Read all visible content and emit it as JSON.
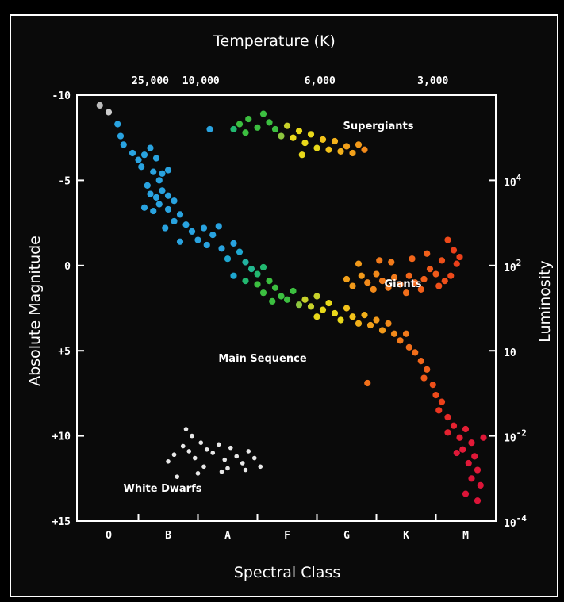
{
  "chart_data": {
    "type": "scatter",
    "title": "",
    "x_top_label": "Temperature (K)",
    "x_bottom_label": "Spectral Class",
    "y_left_label": "Absolute Magnitude",
    "y_right_label": "Luminosity",
    "ylim": [
      -10,
      15
    ],
    "y_left_ticks": [
      {
        "value": -10,
        "label": "-10"
      },
      {
        "value": -5,
        "label": "-5"
      },
      {
        "value": 0,
        "label": "0"
      },
      {
        "value": 5,
        "label": "+5"
      },
      {
        "value": 10,
        "label": "+10"
      },
      {
        "value": 15,
        "label": "+15"
      }
    ],
    "y_right_ticks": [
      {
        "value": -5,
        "base": "10",
        "exp": "4"
      },
      {
        "value": 0,
        "base": "10",
        "exp": "2"
      },
      {
        "value": 5,
        "base": "10",
        "exp": ""
      },
      {
        "value": 10,
        "base": "10",
        "exp": "-2"
      },
      {
        "value": 15,
        "base": "10",
        "exp": "-4"
      }
    ],
    "spectral_classes": [
      {
        "label": "O",
        "x": 0
      },
      {
        "label": "B",
        "x": 1
      },
      {
        "label": "A",
        "x": 2
      },
      {
        "label": "F",
        "x": 3
      },
      {
        "label": "G",
        "x": 4
      },
      {
        "label": "K",
        "x": 5
      },
      {
        "label": "M",
        "x": 6
      }
    ],
    "xlim": [
      -0.3,
      6.5
    ],
    "temperature_ticks": [
      {
        "label": "25,000",
        "x": 0.7
      },
      {
        "label": "10,000",
        "x": 1.55
      },
      {
        "label": "6,000",
        "x": 3.55
      },
      {
        "label": "3,000",
        "x": 5.45
      }
    ],
    "regions": [
      {
        "label": "Supergiants",
        "x": 4.0,
        "y": -8.1
      },
      {
        "label": "Giants",
        "x": 4.6,
        "y": 1.2
      },
      {
        "label": "Main Sequence",
        "x": 2.5,
        "y": 5.5
      },
      {
        "label": "White Dwarfs",
        "x": 0.55,
        "y": 13.0
      }
    ],
    "series": [
      {
        "group": "main-sequence",
        "points": [
          [
            -0.15,
            -9.4,
            "#bbbbbb"
          ],
          [
            0.0,
            -9.0,
            "#cccccc"
          ],
          [
            0.15,
            -8.3,
            "#29a3e0"
          ],
          [
            0.2,
            -7.6,
            "#29a3e0"
          ],
          [
            0.25,
            -7.1,
            "#29a3e0"
          ],
          [
            0.4,
            -6.6,
            "#29a3e0"
          ],
          [
            0.5,
            -6.2,
            "#29a3e0"
          ],
          [
            0.55,
            -5.8,
            "#29a3e0"
          ],
          [
            0.6,
            -6.5,
            "#29a3e0"
          ],
          [
            0.7,
            -6.9,
            "#29a3e0"
          ],
          [
            0.8,
            -6.3,
            "#29a3e0"
          ],
          [
            0.75,
            -5.5,
            "#29a3e0"
          ],
          [
            0.85,
            -5.0,
            "#29a3e0"
          ],
          [
            0.9,
            -5.4,
            "#29a3e0"
          ],
          [
            1.0,
            -5.6,
            "#29a3e0"
          ],
          [
            0.65,
            -4.7,
            "#29a3e0"
          ],
          [
            0.7,
            -4.2,
            "#29a3e0"
          ],
          [
            0.8,
            -4.0,
            "#29a3e0"
          ],
          [
            0.9,
            -4.4,
            "#29a3e0"
          ],
          [
            1.0,
            -4.1,
            "#29a3e0"
          ],
          [
            1.1,
            -3.8,
            "#29a3e0"
          ],
          [
            0.6,
            -3.4,
            "#29a3e0"
          ],
          [
            0.75,
            -3.2,
            "#29a3e0"
          ],
          [
            0.85,
            -3.6,
            "#29a3e0"
          ],
          [
            1.0,
            -3.3,
            "#29a3e0"
          ],
          [
            1.2,
            -3.0,
            "#29a3e0"
          ],
          [
            1.1,
            -2.6,
            "#29a3e0"
          ],
          [
            1.3,
            -2.4,
            "#29a3e0"
          ],
          [
            0.95,
            -2.2,
            "#29a3e0"
          ],
          [
            1.4,
            -2.0,
            "#29a3e0"
          ],
          [
            1.6,
            -2.2,
            "#29a3e0"
          ],
          [
            1.75,
            -1.8,
            "#29a3e0"
          ],
          [
            1.85,
            -2.3,
            "#29a3e0"
          ],
          [
            1.5,
            -1.5,
            "#29a3e0"
          ],
          [
            1.65,
            -1.2,
            "#29a3e0"
          ],
          [
            1.9,
            -1.0,
            "#29a3e0"
          ],
          [
            1.2,
            -1.4,
            "#29a3e0"
          ],
          [
            2.1,
            -1.3,
            "#29a3e0"
          ],
          [
            2.2,
            -0.8,
            "#1ea7d0"
          ],
          [
            2.0,
            -0.4,
            "#1ea7d0"
          ],
          [
            2.3,
            -0.2,
            "#22b3a0"
          ],
          [
            2.4,
            0.2,
            "#22b890"
          ],
          [
            2.5,
            0.5,
            "#22b870"
          ],
          [
            2.6,
            0.1,
            "#22b870"
          ],
          [
            2.1,
            0.6,
            "#1ea7d0"
          ],
          [
            2.3,
            0.9,
            "#22b870"
          ],
          [
            2.5,
            1.1,
            "#3cbf40"
          ],
          [
            2.7,
            0.9,
            "#3cbf40"
          ],
          [
            2.8,
            1.3,
            "#3cbf40"
          ],
          [
            2.6,
            1.6,
            "#3cbf40"
          ],
          [
            2.9,
            1.8,
            "#3cbf40"
          ],
          [
            3.0,
            2.0,
            "#3cbf40"
          ],
          [
            2.75,
            2.1,
            "#3cbf40"
          ],
          [
            3.1,
            1.5,
            "#3cbf40"
          ],
          [
            3.2,
            2.3,
            "#8dc63f"
          ],
          [
            3.3,
            2.0,
            "#c8d22a"
          ],
          [
            3.4,
            2.4,
            "#c8d22a"
          ],
          [
            3.5,
            1.8,
            "#c8d22a"
          ],
          [
            3.6,
            2.6,
            "#e8d81a"
          ],
          [
            3.5,
            3.0,
            "#e8d81a"
          ],
          [
            3.7,
            2.2,
            "#e8d81a"
          ],
          [
            3.8,
            2.8,
            "#e8d81a"
          ],
          [
            3.9,
            3.2,
            "#e8d81a"
          ],
          [
            4.0,
            2.5,
            "#f2c21a"
          ],
          [
            4.1,
            3.0,
            "#f2c21a"
          ],
          [
            4.2,
            3.4,
            "#f2b01a"
          ],
          [
            4.3,
            2.9,
            "#f2b01a"
          ],
          [
            4.4,
            3.5,
            "#f2a01a"
          ],
          [
            4.5,
            3.2,
            "#f29a1a"
          ],
          [
            4.6,
            3.8,
            "#f29a1a"
          ],
          [
            4.7,
            3.4,
            "#f28a1a"
          ],
          [
            4.8,
            4.0,
            "#f28a1a"
          ],
          [
            4.9,
            4.4,
            "#f27a1a"
          ],
          [
            5.0,
            4.0,
            "#f27a1a"
          ],
          [
            5.05,
            4.8,
            "#f26e1a"
          ],
          [
            5.15,
            5.1,
            "#f26e1a"
          ],
          [
            5.25,
            5.6,
            "#f2661a"
          ],
          [
            4.35,
            6.9,
            "#f2701a"
          ],
          [
            5.35,
            6.1,
            "#f2601a"
          ],
          [
            5.3,
            6.6,
            "#f05a1a"
          ],
          [
            5.45,
            7.0,
            "#ee501a"
          ],
          [
            5.5,
            7.6,
            "#ee4a1a"
          ],
          [
            5.6,
            8.0,
            "#ec401a"
          ],
          [
            5.55,
            8.5,
            "#ec3520"
          ],
          [
            5.7,
            8.9,
            "#e82a28"
          ],
          [
            5.8,
            9.4,
            "#e42230"
          ],
          [
            5.7,
            9.8,
            "#e42230"
          ],
          [
            5.9,
            10.1,
            "#e41e34"
          ],
          [
            6.0,
            9.6,
            "#e41e34"
          ],
          [
            6.1,
            10.4,
            "#e41a38"
          ],
          [
            5.95,
            10.8,
            "#e41a38"
          ],
          [
            6.15,
            11.2,
            "#e01838"
          ],
          [
            6.05,
            11.6,
            "#e01838"
          ],
          [
            6.2,
            12.0,
            "#e01838"
          ],
          [
            6.1,
            12.5,
            "#dc1438"
          ],
          [
            6.25,
            12.9,
            "#dc1438"
          ],
          [
            6.0,
            13.4,
            "#dc1438"
          ],
          [
            6.2,
            13.8,
            "#dc1438"
          ],
          [
            6.3,
            10.1,
            "#e01838"
          ],
          [
            5.85,
            11.0,
            "#e01838"
          ]
        ]
      },
      {
        "group": "supergiants",
        "points": [
          [
            1.7,
            -8.0,
            "#29a3e0"
          ],
          [
            2.1,
            -8.0,
            "#22b870"
          ],
          [
            2.2,
            -8.3,
            "#3cbf40"
          ],
          [
            2.35,
            -8.6,
            "#3cbf40"
          ],
          [
            2.5,
            -8.1,
            "#3cbf40"
          ],
          [
            2.6,
            -8.9,
            "#3cbf40"
          ],
          [
            2.7,
            -8.4,
            "#3cbf40"
          ],
          [
            2.8,
            -8.0,
            "#3cbf40"
          ],
          [
            2.3,
            -7.8,
            "#3cbf40"
          ],
          [
            2.9,
            -7.6,
            "#8dc63f"
          ],
          [
            3.0,
            -8.2,
            "#c8d22a"
          ],
          [
            3.1,
            -7.5,
            "#e8d81a"
          ],
          [
            3.2,
            -7.9,
            "#e8d81a"
          ],
          [
            3.3,
            -7.2,
            "#e8d81a"
          ],
          [
            3.4,
            -7.7,
            "#e8d81a"
          ],
          [
            3.5,
            -6.9,
            "#e8d81a"
          ],
          [
            3.6,
            -7.4,
            "#f2c21a"
          ],
          [
            3.7,
            -6.8,
            "#f2c21a"
          ],
          [
            3.8,
            -7.3,
            "#f2b01a"
          ],
          [
            3.9,
            -6.7,
            "#f2b01a"
          ],
          [
            4.0,
            -7.0,
            "#f2a01a"
          ],
          [
            4.1,
            -6.6,
            "#f2a01a"
          ],
          [
            4.2,
            -7.1,
            "#f29a1a"
          ],
          [
            3.25,
            -6.5,
            "#e8d81a"
          ],
          [
            4.3,
            -6.8,
            "#f28a1a"
          ]
        ]
      },
      {
        "group": "giants",
        "points": [
          [
            4.0,
            0.8,
            "#f2a01a"
          ],
          [
            4.1,
            1.2,
            "#f29a1a"
          ],
          [
            4.25,
            0.6,
            "#f29a1a"
          ],
          [
            4.35,
            1.0,
            "#f28a1a"
          ],
          [
            4.45,
            1.4,
            "#f28a1a"
          ],
          [
            4.5,
            0.5,
            "#f28a1a"
          ],
          [
            4.6,
            0.9,
            "#f27a1a"
          ],
          [
            4.7,
            1.3,
            "#f27a1a"
          ],
          [
            4.8,
            0.7,
            "#f27a1a"
          ],
          [
            4.9,
            1.1,
            "#f26e1a"
          ],
          [
            5.0,
            1.6,
            "#f26e1a"
          ],
          [
            5.05,
            0.6,
            "#f2661a"
          ],
          [
            5.15,
            1.0,
            "#f2661a"
          ],
          [
            5.25,
            1.4,
            "#f2601a"
          ],
          [
            5.3,
            0.8,
            "#f2601a"
          ],
          [
            5.4,
            0.2,
            "#f05a1a"
          ],
          [
            5.5,
            0.5,
            "#f05a1a"
          ],
          [
            5.55,
            1.2,
            "#ee501a"
          ],
          [
            5.65,
            0.9,
            "#ee501a"
          ],
          [
            5.7,
            -1.5,
            "#ee4a1a"
          ],
          [
            5.75,
            0.6,
            "#ee4a1a"
          ],
          [
            5.85,
            -0.1,
            "#ec401a"
          ],
          [
            5.9,
            -0.5,
            "#ec401a"
          ],
          [
            5.8,
            -0.9,
            "#ec401a"
          ],
          [
            4.55,
            -0.3,
            "#f27a1a"
          ],
          [
            4.75,
            -0.2,
            "#f27a1a"
          ],
          [
            5.1,
            -0.4,
            "#f2661a"
          ],
          [
            5.35,
            -0.7,
            "#f2601a"
          ],
          [
            5.6,
            -0.3,
            "#ee501a"
          ],
          [
            4.2,
            -0.1,
            "#f29a1a"
          ]
        ]
      },
      {
        "group": "white-dwarfs",
        "points": [
          [
            1.0,
            11.5,
            "#e8e8e8"
          ],
          [
            1.1,
            11.1,
            "#e8e8e8"
          ],
          [
            1.25,
            10.6,
            "#e8e8e8"
          ],
          [
            1.35,
            10.9,
            "#e8e8e8"
          ],
          [
            1.45,
            11.3,
            "#e8e8e8"
          ],
          [
            1.55,
            10.4,
            "#e8e8e8"
          ],
          [
            1.65,
            10.8,
            "#e8e8e8"
          ],
          [
            1.75,
            11.0,
            "#e8e8e8"
          ],
          [
            1.85,
            10.5,
            "#e8e8e8"
          ],
          [
            1.95,
            11.4,
            "#e8e8e8"
          ],
          [
            2.05,
            10.7,
            "#e8e8e8"
          ],
          [
            2.15,
            11.2,
            "#e8e8e8"
          ],
          [
            2.25,
            11.6,
            "#e8e8e8"
          ],
          [
            2.35,
            10.9,
            "#e8e8e8"
          ],
          [
            2.45,
            11.3,
            "#e8e8e8"
          ],
          [
            1.3,
            9.6,
            "#e8e8e8"
          ],
          [
            1.4,
            10.0,
            "#e8e8e8"
          ],
          [
            1.6,
            11.8,
            "#e8e8e8"
          ],
          [
            1.9,
            12.1,
            "#e8e8e8"
          ],
          [
            2.0,
            11.9,
            "#e8e8e8"
          ],
          [
            2.55,
            11.8,
            "#e8e8e8"
          ],
          [
            1.5,
            12.2,
            "#e8e8e8"
          ],
          [
            2.3,
            12.0,
            "#e8e8e8"
          ],
          [
            1.15,
            12.4,
            "#e8e8e8"
          ]
        ]
      }
    ]
  }
}
